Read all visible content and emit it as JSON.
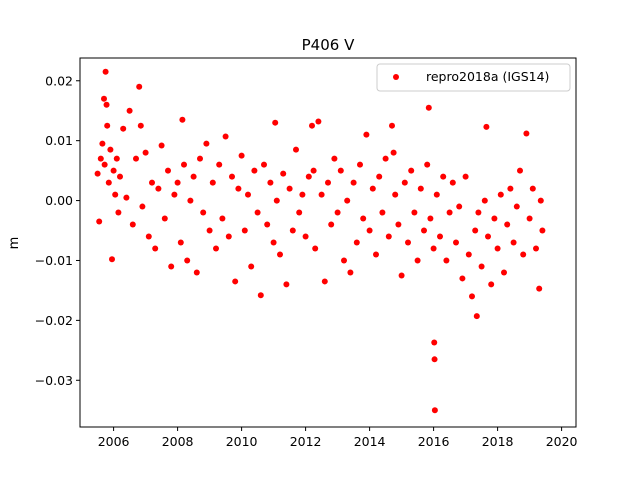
{
  "chart_data": {
    "type": "scatter",
    "title": "P406 V",
    "xlabel": "",
    "ylabel": "m",
    "xlim": [
      2004.95,
      2020.45
    ],
    "ylim": [
      -0.0378,
      0.0238
    ],
    "xticks": [
      2006,
      2008,
      2010,
      2012,
      2014,
      2016,
      2018,
      2020
    ],
    "xtick_labels": [
      "2006",
      "2008",
      "2010",
      "2012",
      "2014",
      "2016",
      "2018",
      "2020"
    ],
    "yticks": [
      -0.03,
      -0.02,
      -0.01,
      0.0,
      0.01,
      0.02
    ],
    "ytick_labels": [
      "−0.03",
      "−0.02",
      "−0.01",
      "0.00",
      "0.01",
      "0.02"
    ],
    "legend_position": "upper right",
    "grid": false,
    "series": [
      {
        "name": "repro2018a (IGS14)",
        "color": "#ff0000",
        "marker": "circle",
        "points": [
          [
            2005.5,
            0.0045
          ],
          [
            2005.55,
            -0.0035
          ],
          [
            2005.6,
            0.007
          ],
          [
            2005.65,
            0.0095
          ],
          [
            2005.7,
            0.017
          ],
          [
            2005.72,
            0.006
          ],
          [
            2005.75,
            0.0215
          ],
          [
            2005.78,
            0.016
          ],
          [
            2005.8,
            0.0125
          ],
          [
            2005.85,
            0.003
          ],
          [
            2005.9,
            0.0085
          ],
          [
            2005.95,
            -0.0098
          ],
          [
            2006.0,
            0.005
          ],
          [
            2006.05,
            0.001
          ],
          [
            2006.1,
            0.007
          ],
          [
            2006.15,
            -0.002
          ],
          [
            2006.2,
            0.004
          ],
          [
            2006.3,
            0.012
          ],
          [
            2006.4,
            0.0005
          ],
          [
            2006.5,
            0.015
          ],
          [
            2006.6,
            -0.004
          ],
          [
            2006.7,
            0.007
          ],
          [
            2006.8,
            0.019
          ],
          [
            2006.85,
            0.0125
          ],
          [
            2006.9,
            -0.001
          ],
          [
            2007.0,
            0.008
          ],
          [
            2007.1,
            -0.006
          ],
          [
            2007.2,
            0.003
          ],
          [
            2007.3,
            -0.008
          ],
          [
            2007.4,
            0.002
          ],
          [
            2007.5,
            0.0092
          ],
          [
            2007.6,
            -0.003
          ],
          [
            2007.7,
            0.005
          ],
          [
            2007.8,
            -0.011
          ],
          [
            2007.9,
            0.001
          ],
          [
            2008.0,
            0.003
          ],
          [
            2008.1,
            -0.007
          ],
          [
            2008.15,
            0.0135
          ],
          [
            2008.2,
            0.006
          ],
          [
            2008.3,
            -0.01
          ],
          [
            2008.4,
            0.0
          ],
          [
            2008.5,
            0.004
          ],
          [
            2008.6,
            -0.012
          ],
          [
            2008.7,
            0.007
          ],
          [
            2008.8,
            -0.002
          ],
          [
            2008.9,
            0.0095
          ],
          [
            2009.0,
            -0.005
          ],
          [
            2009.1,
            0.003
          ],
          [
            2009.2,
            -0.008
          ],
          [
            2009.3,
            0.006
          ],
          [
            2009.4,
            -0.003
          ],
          [
            2009.5,
            0.0107
          ],
          [
            2009.6,
            -0.006
          ],
          [
            2009.7,
            0.004
          ],
          [
            2009.8,
            -0.0135
          ],
          [
            2009.9,
            0.002
          ],
          [
            2010.0,
            0.0075
          ],
          [
            2010.1,
            -0.005
          ],
          [
            2010.2,
            0.001
          ],
          [
            2010.3,
            -0.011
          ],
          [
            2010.4,
            0.005
          ],
          [
            2010.5,
            -0.002
          ],
          [
            2010.6,
            -0.0158
          ],
          [
            2010.7,
            0.006
          ],
          [
            2010.8,
            -0.004
          ],
          [
            2010.9,
            0.003
          ],
          [
            2011.0,
            -0.007
          ],
          [
            2011.05,
            0.013
          ],
          [
            2011.1,
            0.0
          ],
          [
            2011.2,
            -0.009
          ],
          [
            2011.3,
            0.0045
          ],
          [
            2011.4,
            -0.014
          ],
          [
            2011.5,
            0.002
          ],
          [
            2011.6,
            -0.005
          ],
          [
            2011.7,
            0.0085
          ],
          [
            2011.8,
            -0.002
          ],
          [
            2011.9,
            0.001
          ],
          [
            2012.0,
            -0.006
          ],
          [
            2012.1,
            0.004
          ],
          [
            2012.2,
            0.0125
          ],
          [
            2012.25,
            0.005
          ],
          [
            2012.3,
            -0.008
          ],
          [
            2012.4,
            0.0132
          ],
          [
            2012.5,
            0.001
          ],
          [
            2012.6,
            -0.0135
          ],
          [
            2012.7,
            0.003
          ],
          [
            2012.8,
            -0.004
          ],
          [
            2012.9,
            0.007
          ],
          [
            2013.0,
            -0.002
          ],
          [
            2013.1,
            0.005
          ],
          [
            2013.2,
            -0.01
          ],
          [
            2013.3,
            0.0
          ],
          [
            2013.4,
            -0.012
          ],
          [
            2013.5,
            0.003
          ],
          [
            2013.6,
            -0.007
          ],
          [
            2013.7,
            0.006
          ],
          [
            2013.8,
            -0.003
          ],
          [
            2013.9,
            0.011
          ],
          [
            2014.0,
            -0.005
          ],
          [
            2014.1,
            0.002
          ],
          [
            2014.2,
            -0.009
          ],
          [
            2014.3,
            0.004
          ],
          [
            2014.4,
            -0.002
          ],
          [
            2014.5,
            0.007
          ],
          [
            2014.6,
            -0.006
          ],
          [
            2014.7,
            0.0125
          ],
          [
            2014.75,
            0.008
          ],
          [
            2014.8,
            0.001
          ],
          [
            2014.9,
            -0.004
          ],
          [
            2015.0,
            -0.0125
          ],
          [
            2015.1,
            0.003
          ],
          [
            2015.2,
            -0.007
          ],
          [
            2015.3,
            0.005
          ],
          [
            2015.4,
            -0.002
          ],
          [
            2015.5,
            -0.01
          ],
          [
            2015.6,
            0.002
          ],
          [
            2015.7,
            -0.005
          ],
          [
            2015.8,
            0.006
          ],
          [
            2015.85,
            0.0155
          ],
          [
            2015.9,
            -0.003
          ],
          [
            2016.0,
            -0.008
          ],
          [
            2016.02,
            -0.0237
          ],
          [
            2016.03,
            -0.0265
          ],
          [
            2016.04,
            -0.035
          ],
          [
            2016.1,
            0.001
          ],
          [
            2016.2,
            -0.006
          ],
          [
            2016.3,
            0.004
          ],
          [
            2016.4,
            -0.01
          ],
          [
            2016.5,
            -0.002
          ],
          [
            2016.6,
            0.003
          ],
          [
            2016.7,
            -0.007
          ],
          [
            2016.8,
            -0.001
          ],
          [
            2016.9,
            -0.013
          ],
          [
            2017.0,
            0.004
          ],
          [
            2017.1,
            -0.009
          ],
          [
            2017.2,
            -0.016
          ],
          [
            2017.3,
            -0.005
          ],
          [
            2017.35,
            -0.0193
          ],
          [
            2017.4,
            -0.002
          ],
          [
            2017.5,
            -0.011
          ],
          [
            2017.6,
            0.0
          ],
          [
            2017.65,
            0.0123
          ],
          [
            2017.7,
            -0.006
          ],
          [
            2017.8,
            -0.014
          ],
          [
            2017.9,
            -0.003
          ],
          [
            2018.0,
            -0.008
          ],
          [
            2018.1,
            0.001
          ],
          [
            2018.2,
            -0.012
          ],
          [
            2018.3,
            -0.004
          ],
          [
            2018.4,
            0.002
          ],
          [
            2018.5,
            -0.007
          ],
          [
            2018.6,
            -0.001
          ],
          [
            2018.7,
            0.005
          ],
          [
            2018.8,
            -0.009
          ],
          [
            2018.9,
            0.0112
          ],
          [
            2019.0,
            -0.003
          ],
          [
            2019.1,
            0.002
          ],
          [
            2019.2,
            -0.008
          ],
          [
            2019.3,
            -0.0147
          ],
          [
            2019.35,
            0.0
          ],
          [
            2019.4,
            -0.005
          ]
        ]
      }
    ]
  }
}
